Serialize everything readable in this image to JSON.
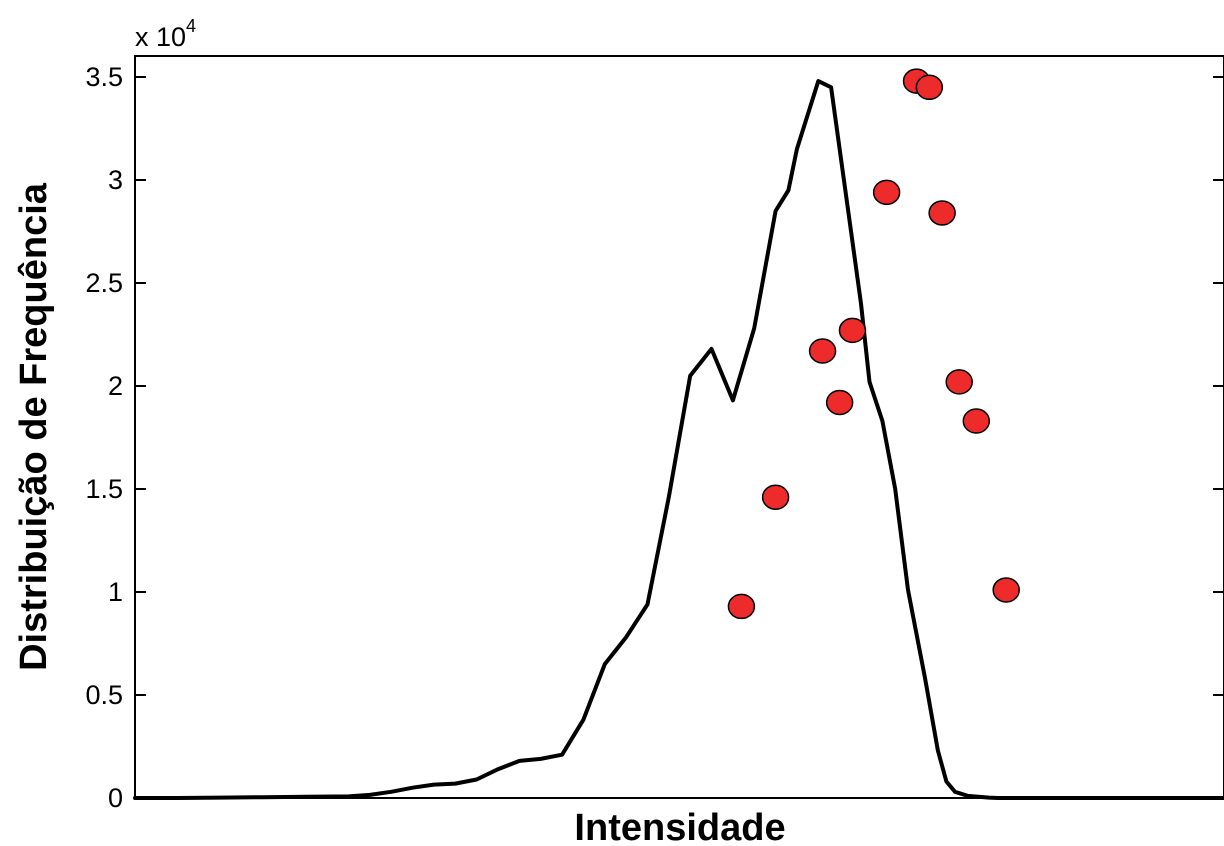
{
  "chart_data": {
    "type": "line",
    "xlabel": "Intensidade",
    "ylabel": "Distribuição de Frequência",
    "y_multiplier_label": "x 10",
    "y_multiplier_exponent": "4",
    "y_multiplier": 10000,
    "xlim": [
      0,
      255
    ],
    "ylim": [
      0,
      35000
    ],
    "yticks": [
      0,
      5000,
      10000,
      15000,
      20000,
      25000,
      30000,
      35000
    ],
    "ytick_labels": [
      "0",
      "0.5",
      "1",
      "1.5",
      "2",
      "2.5",
      "3",
      "3.5"
    ],
    "xticks_shown": false,
    "grid": false,
    "line_color": "#000000",
    "marker_color": "#ee2b2b",
    "series": [
      {
        "x": [
          0,
          10,
          20,
          30,
          40,
          50,
          55,
          60,
          65,
          70,
          75,
          80,
          85,
          90,
          95,
          100,
          105,
          110,
          115,
          120,
          125,
          130,
          135,
          140,
          145,
          150,
          153,
          155,
          160,
          163,
          167,
          170,
          172,
          175,
          178,
          181,
          185,
          188,
          190,
          192,
          195,
          200,
          202,
          206,
          210,
          214,
          220,
          225,
          230,
          235,
          240,
          245,
          250,
          255
        ],
        "y": [
          0,
          0,
          20,
          40,
          60,
          80,
          150,
          300,
          500,
          650,
          700,
          900,
          1400,
          1800,
          1900,
          2100,
          3800,
          6500,
          7800,
          9400,
          14600,
          20500,
          21800,
          19300,
          22800,
          28500,
          29500,
          31500,
          34800,
          34500,
          28500,
          24000,
          20200,
          18300,
          15000,
          10100,
          5800,
          2300,
          800,
          300,
          100,
          20,
          0,
          0,
          0,
          0,
          0,
          0,
          0,
          0,
          0,
          0,
          0,
          0
        ]
      }
    ],
    "markers": {
      "x": [
        142,
        150,
        161,
        165,
        168,
        176,
        183,
        186,
        189,
        193,
        197,
        204
      ],
      "y": [
        9300,
        14600,
        21700,
        19200,
        22700,
        29400,
        34800,
        34500,
        28400,
        20200,
        18300,
        10100
      ]
    }
  }
}
